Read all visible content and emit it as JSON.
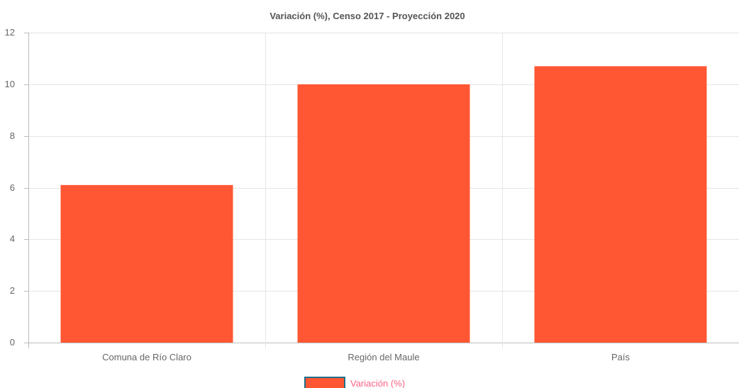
{
  "chart_data": {
    "type": "bar",
    "title": "Variación (%), Censo 2017 - Proyección 2020",
    "categories": [
      "Comuna de Río Claro",
      "Región del Maule",
      "País"
    ],
    "series": [
      {
        "name": "Variación (%)",
        "values": [
          6.1,
          10.0,
          10.7
        ]
      }
    ],
    "xlabel": "",
    "ylabel": "",
    "ylim": [
      0,
      12
    ],
    "yticks": [
      "0",
      "2",
      "4",
      "6",
      "8",
      "10",
      "12"
    ],
    "grid": true,
    "legend": "bottom",
    "colors": {
      "bar": "#ff5733",
      "legend_border": "#1f6f8b",
      "legend_text": "#ff6384",
      "grid": "#e5e5e5",
      "axis": "#bdbdbd"
    }
  }
}
